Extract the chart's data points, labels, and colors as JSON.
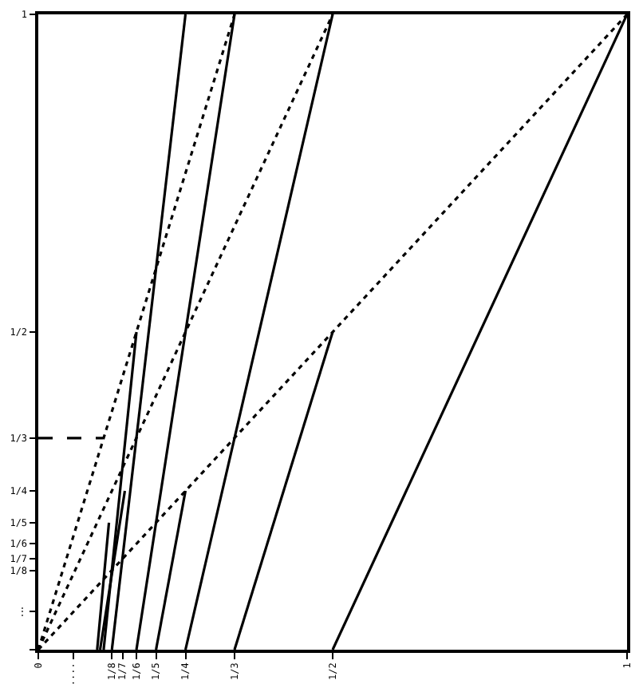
{
  "chart_data": {
    "type": "line",
    "xlim": [
      0,
      1
    ],
    "ylim": [
      0,
      1
    ],
    "xticks": [
      0,
      {
        "value": 0.06,
        "label": "····"
      },
      {
        "value": 0.125,
        "label": "1/8"
      },
      {
        "value": 0.143,
        "label": "1/7"
      },
      {
        "value": 0.167,
        "label": "1/6"
      },
      {
        "value": 0.2,
        "label": "1/5"
      },
      {
        "value": 0.25,
        "label": "1/4"
      },
      {
        "value": 0.333,
        "label": "1/3"
      },
      {
        "value": 0.5,
        "label": "1/2"
      },
      1
    ],
    "yticks": [
      {
        "value": 0,
        "label": null
      },
      {
        "value": 0.06,
        "label": "⋮"
      },
      {
        "value": 0.125,
        "label": "1/8"
      },
      {
        "value": 0.143,
        "label": "1/7"
      },
      {
        "value": 0.167,
        "label": "1/6"
      },
      {
        "value": 0.2,
        "label": "1/5"
      },
      {
        "value": 0.25,
        "label": "1/4"
      },
      {
        "value": 0.333,
        "label": "1/3"
      },
      {
        "value": 0.5,
        "label": "1/2"
      },
      1
    ],
    "series": [
      {
        "color": "#000000",
        "line_style": "solid",
        "x": [
          0.5,
          1
        ],
        "values": [
          0,
          1
        ]
      },
      {
        "color": "#000000",
        "line_style": "solid",
        "x": [
          0.3333,
          0.5
        ],
        "values": [
          0,
          0.5
        ]
      },
      {
        "color": "#000000",
        "line_style": "solid",
        "x": [
          0.25,
          0.5
        ],
        "values": [
          0,
          1
        ]
      },
      {
        "color": "#000000",
        "line_style": "solid",
        "x": [
          0.2,
          0.25
        ],
        "values": [
          0,
          0.25
        ]
      },
      {
        "color": "#000000",
        "line_style": "solid",
        "x": [
          0.1667,
          0.3333
        ],
        "values": [
          0,
          1
        ]
      },
      {
        "color": "#000000",
        "line_style": "solid",
        "x": [
          0.125,
          0.25
        ],
        "values": [
          0,
          1
        ]
      },
      {
        "color": "#000000",
        "line_style": "solid",
        "x": [
          0.111,
          0.1667
        ],
        "values": [
          0,
          0.5
        ]
      },
      {
        "color": "#000000",
        "line_style": "solid",
        "x": [
          0.105,
          0.147
        ],
        "values": [
          0,
          0.25
        ]
      },
      {
        "color": "#000000",
        "line_style": "solid",
        "x": [
          0.1,
          0.12
        ],
        "values": [
          0,
          0.2
        ]
      },
      {
        "color": "#000000",
        "line_style": "dotted",
        "x": [
          0,
          1
        ],
        "values": [
          0,
          1
        ]
      },
      {
        "color": "#000000",
        "line_style": "dotted",
        "x": [
          0,
          0.5
        ],
        "values": [
          0,
          1
        ]
      },
      {
        "color": "#000000",
        "line_style": "dotted",
        "x": [
          0,
          0.3333
        ],
        "values": [
          0,
          1
        ]
      },
      {
        "color": "#000000",
        "line_style": "dashed",
        "x": [
          0,
          0.11
        ],
        "values": [
          0.333,
          0.333
        ]
      }
    ]
  }
}
